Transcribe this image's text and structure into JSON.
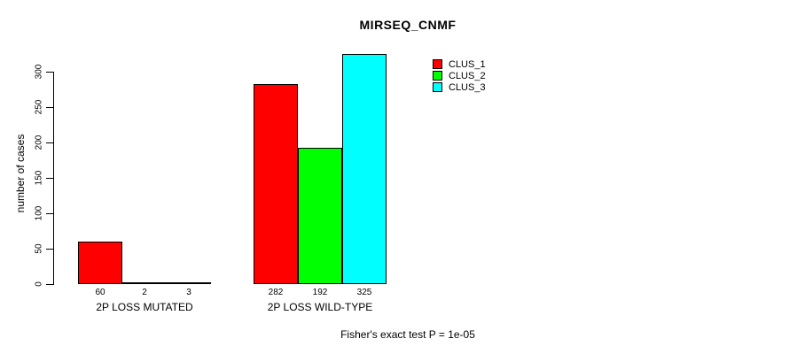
{
  "chart_data": {
    "type": "bar",
    "title": "MIRSEQ_CNMF",
    "ylabel": "number of cases",
    "xlabel": "",
    "ylim": [
      0,
      325
    ],
    "yticks": [
      0,
      50,
      100,
      150,
      200,
      250,
      300
    ],
    "categories": [
      "2P LOSS MUTATED",
      "2P LOSS WILD-TYPE"
    ],
    "series": [
      {
        "name": "CLUS_1",
        "color": "#ff0000",
        "values": [
          60,
          282
        ]
      },
      {
        "name": "CLUS_2",
        "color": "#00ff00",
        "values": [
          2,
          192
        ]
      },
      {
        "name": "CLUS_3",
        "color": "#00ffff",
        "values": [
          3,
          325
        ]
      }
    ],
    "bar_value_labels": [
      [
        "60",
        "2",
        "3"
      ],
      [
        "282",
        "192",
        "325"
      ]
    ],
    "legend_position": "top-right",
    "grid": false,
    "footnote": "Fisher's exact test P = 1e-05"
  },
  "colors": {
    "axis": "#000000",
    "text": "#000000",
    "background": "#ffffff"
  }
}
